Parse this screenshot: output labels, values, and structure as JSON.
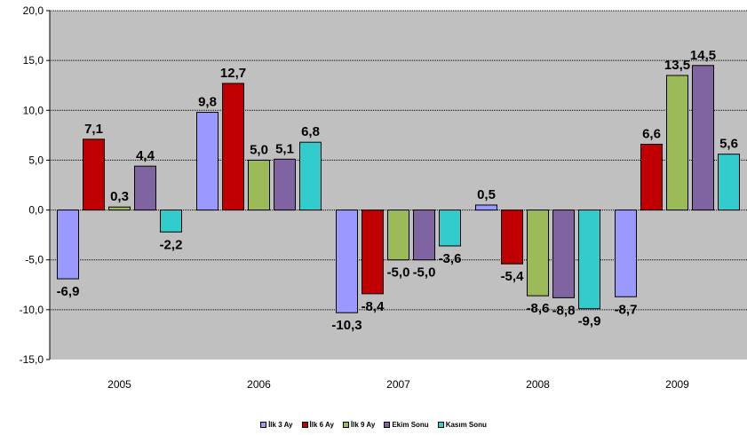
{
  "chart_data": {
    "type": "bar",
    "categories": [
      "2005",
      "2006",
      "2007",
      "2008",
      "2009"
    ],
    "ylim": [
      -15,
      20
    ],
    "yticks": [
      "20,0",
      "15,0",
      "10,0",
      "5,0",
      "0,0",
      "-5,0",
      "-10,0",
      "-15,0"
    ],
    "ytick_values": [
      20,
      15,
      10,
      5,
      0,
      -5,
      -10,
      -15
    ],
    "grid": "horizontal dotted",
    "legend_position": "bottom",
    "series": [
      {
        "name": "İlk 3 Ay",
        "color": "#9999ff",
        "values": [
          -6.9,
          9.8,
          -10.3,
          0.5,
          -8.7
        ],
        "labels": [
          "-6,9",
          "9,8",
          "-10,3",
          "0,5",
          "-8,7"
        ]
      },
      {
        "name": "İlk 6 Ay",
        "color": "#c00000",
        "values": [
          7.1,
          12.7,
          -8.4,
          -5.4,
          6.6
        ],
        "labels": [
          "7,1",
          "12,7",
          "-8,4",
          "-5,4",
          "6,6"
        ]
      },
      {
        "name": "İlk 9 Ay",
        "color": "#9bbb59",
        "values": [
          0.3,
          5.0,
          -5.0,
          -8.6,
          13.5
        ],
        "labels": [
          "0,3",
          "5,0",
          "-5,0",
          "-8,6",
          "13,5"
        ]
      },
      {
        "name": "Ekim Sonu",
        "color": "#8064a2",
        "values": [
          4.4,
          5.1,
          -5.0,
          -8.8,
          14.5
        ],
        "labels": [
          "4,4",
          "5,1",
          "-5,0",
          "-8,8",
          "14,5"
        ]
      },
      {
        "name": "Kasım Sonu",
        "color": "#33cccc",
        "values": [
          -2.2,
          6.8,
          -3.6,
          -9.9,
          5.6
        ],
        "labels": [
          "-2,2",
          "6,8",
          "-3,6",
          "-9,9",
          "5,6"
        ]
      }
    ]
  }
}
